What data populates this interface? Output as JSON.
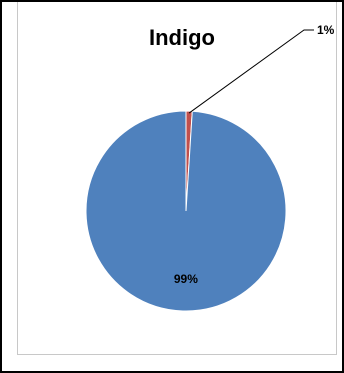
{
  "chart_data": {
    "type": "pie",
    "title": "Indigo",
    "labels": [
      "",
      ""
    ],
    "values": [
      1,
      99
    ],
    "data_labels": [
      "1%",
      "99%"
    ],
    "colors": [
      "#C0504D",
      "#4F81BD"
    ]
  }
}
